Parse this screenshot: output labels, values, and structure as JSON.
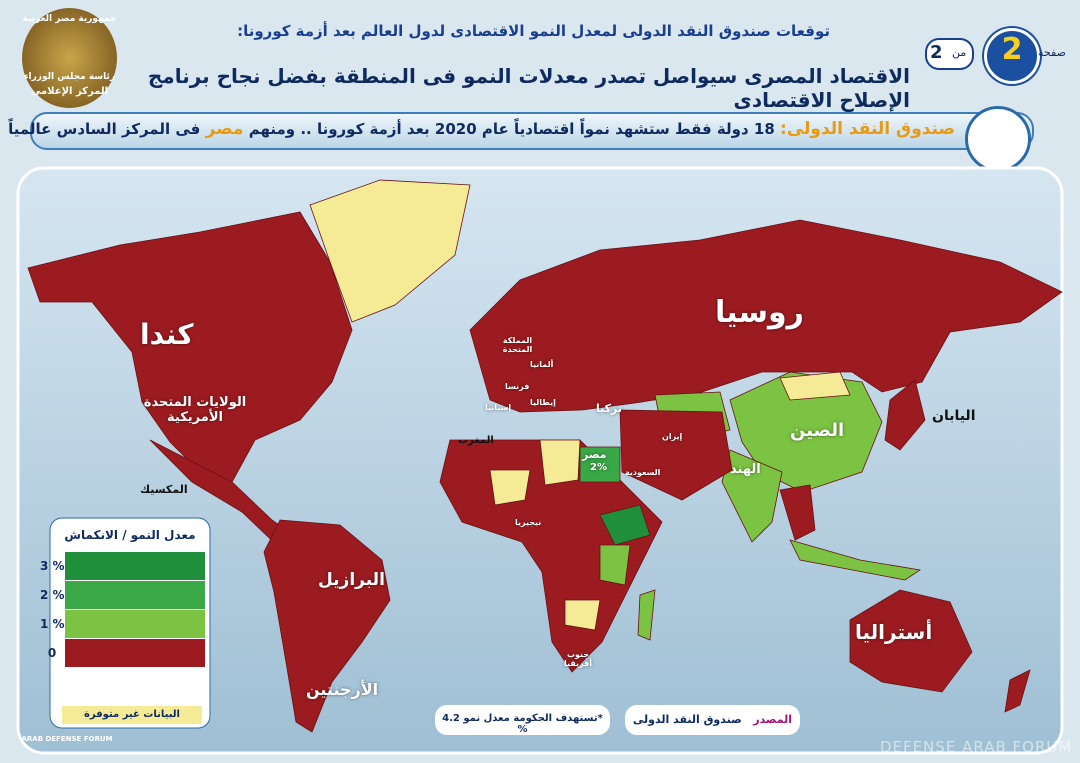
{
  "header": {
    "subtitle": "توقعات صندوق النقد الدولى لمعدل النمو الاقتصادى لدول العالم بعد أزمة كورونا:",
    "title": "الاقتصاد المصرى سيواصل تصدر معدلات النمو فى المنطقة بفضل نجاح برنامج الإصلاح الاقتصادى",
    "page_word": "صفحة",
    "page": "2",
    "of_word": "من",
    "total": "2",
    "logo": [
      "جمهورية مصر العربية",
      "رئاسة مجلس الوزراء",
      "المركز الإعلامى"
    ]
  },
  "banner": {
    "source": "صندوق النقد الدولى:",
    "text": "18 دولة فقط ستشهد نمواً اقتصادياً عام 2020 بعد أزمة كورونا .. ومنهم",
    "highlight": "مصر",
    "rest": "فى المركز السادس عالمياً"
  },
  "countries": {
    "russia": "روسيا",
    "canada": "كندا",
    "usa": "الولايات المتحدة الأمريكية",
    "mexico": "المكسيك",
    "brazil": "البرازيل",
    "argentina": "الأرجنتين",
    "china": "الصين",
    "india": "الهند",
    "japan": "اليابان",
    "australia": "أستراليا",
    "egypt": "مصر",
    "egypt_rate": "2%",
    "turkey": "تركيا",
    "iran": "إيران",
    "saudi": "السعودية",
    "morocco": "المغرب",
    "nigeria": "نيجيريا",
    "south_africa": "جنوب أفريقيا",
    "uk": "المملكة المتحدة",
    "germany": "ألمانيا",
    "france": "فرنسا",
    "spain": "إسبانيا",
    "italy": "إيطاليا"
  },
  "legend": {
    "title": "معدل النمو / الانكماش",
    "levels": [
      {
        "label": "3 %",
        "color": "#1f8f3c"
      },
      {
        "label": "2 %",
        "color": "#3aa846"
      },
      {
        "label": "1 %",
        "color": "#7cc243"
      },
      {
        "label": "0",
        "color": "#9b1b20"
      }
    ],
    "no_data": "البيانات غير متوفرة"
  },
  "footnote": "*تستهدف الحكومة معدل نمو 4.2 %",
  "source": {
    "label": "المصدر",
    "name": "صندوق النقد الدولى"
  },
  "watermark": [
    "ARAB DEFENSE FORUM",
    "DEFENSE ARAB FORUM"
  ]
}
